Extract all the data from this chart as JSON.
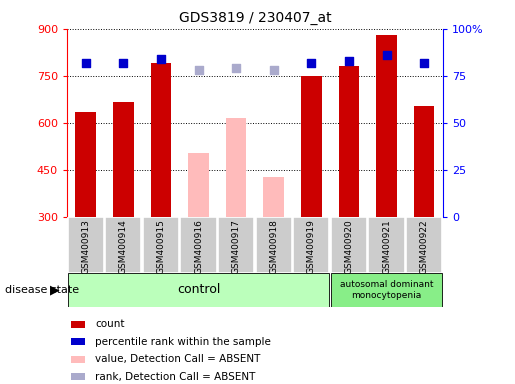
{
  "title": "GDS3819 / 230407_at",
  "samples": [
    "GSM400913",
    "GSM400914",
    "GSM400915",
    "GSM400916",
    "GSM400917",
    "GSM400918",
    "GSM400919",
    "GSM400920",
    "GSM400921",
    "GSM400922"
  ],
  "count_values": [
    635,
    665,
    790,
    null,
    null,
    null,
    748,
    780,
    880,
    655
  ],
  "count_absent": [
    null,
    null,
    null,
    505,
    615,
    428,
    null,
    null,
    null,
    null
  ],
  "rank_values": [
    82,
    82,
    84,
    null,
    null,
    null,
    82,
    83,
    86,
    82
  ],
  "rank_absent": [
    null,
    null,
    null,
    78,
    79,
    78,
    null,
    null,
    null,
    null
  ],
  "ylim_left": [
    300,
    900
  ],
  "ylim_right": [
    0,
    100
  ],
  "yticks_left": [
    300,
    450,
    600,
    750,
    900
  ],
  "yticks_right": [
    0,
    25,
    50,
    75,
    100
  ],
  "control_indices": [
    0,
    1,
    2,
    3,
    4,
    5,
    6
  ],
  "disease_indices": [
    7,
    8,
    9
  ],
  "control_label": "control",
  "disease_label": "autosomal dominant\nmonocytopenia",
  "disease_state_label": "disease state",
  "legend_items": [
    {
      "label": "count",
      "color": "#cc0000"
    },
    {
      "label": "percentile rank within the sample",
      "color": "#0000cc"
    },
    {
      "label": "value, Detection Call = ABSENT",
      "color": "#ffbbbb"
    },
    {
      "label": "rank, Detection Call = ABSENT",
      "color": "#aaaacc"
    }
  ],
  "bar_color_present": "#cc0000",
  "bar_color_absent": "#ffbbbb",
  "dot_color_present": "#0000cc",
  "dot_color_absent": "#aaaacc",
  "bg_control": "#bbffbb",
  "bg_disease": "#88ee88"
}
